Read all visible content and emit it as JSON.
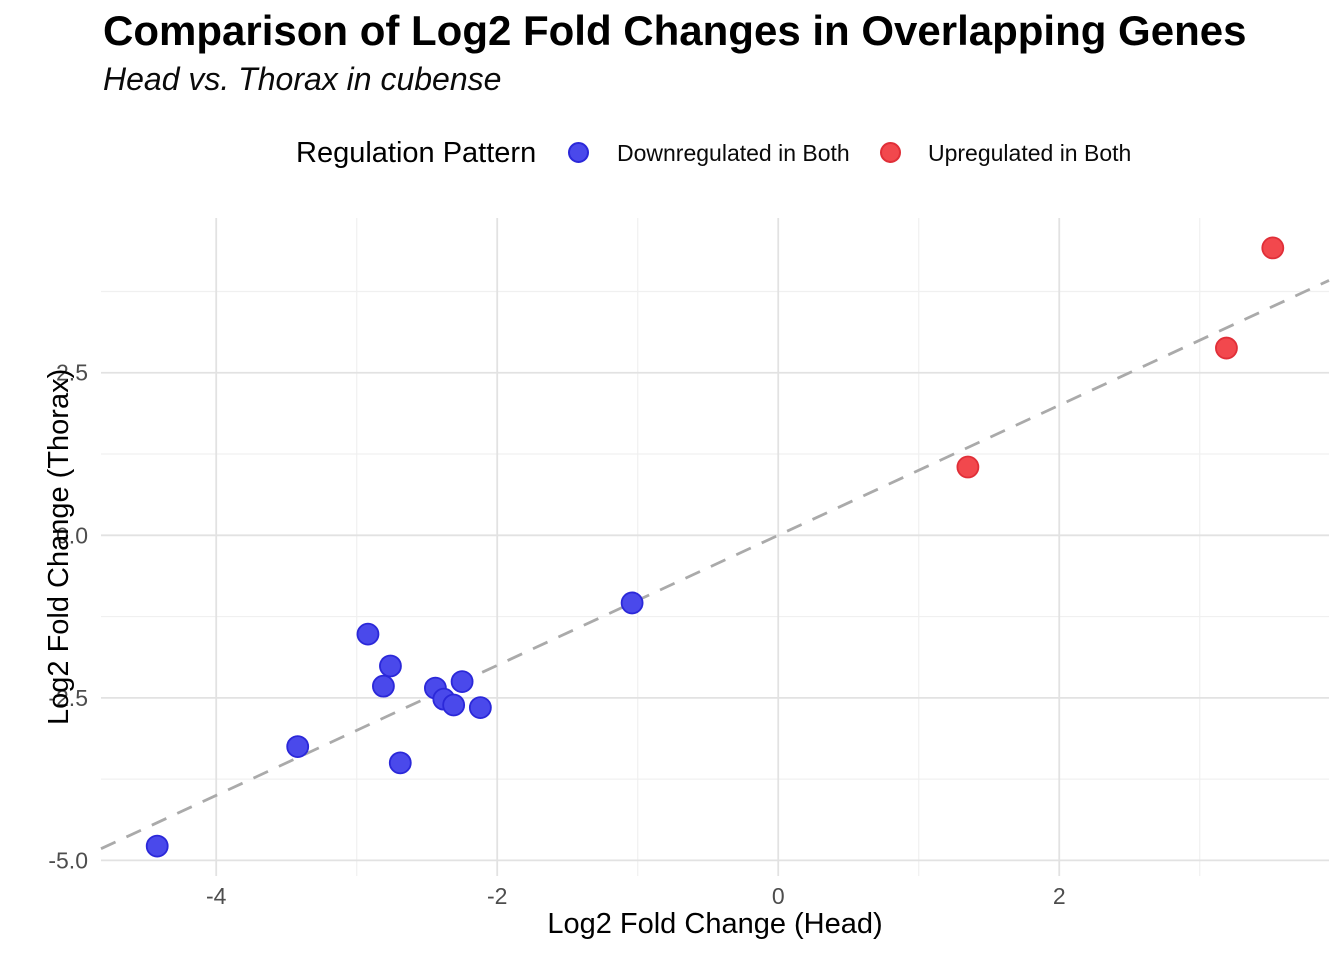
{
  "header": {
    "title": "Comparison of Log2 Fold Changes in Overlapping Genes",
    "subtitle": "Head vs. Thorax in cubense"
  },
  "legend": {
    "title": "Regulation Pattern",
    "position": "top",
    "items": [
      {
        "label": "Downregulated in Both",
        "color": "#4a49eb",
        "border": "#2b28d9"
      },
      {
        "label": "Upregulated in Both",
        "color": "#f2484d",
        "border": "#e02f38"
      }
    ]
  },
  "chart_data": {
    "type": "scatter",
    "title": "Comparison of Log2 Fold Changes in Overlapping Genes",
    "subtitle": "Head vs. Thorax in cubense",
    "xlabel": "Log2 Fold Change (Head)",
    "ylabel": "Log2 Fold Change (Thorax)",
    "xlim": [
      -4.82,
      3.92
    ],
    "ylim": [
      -5.24,
      4.88
    ],
    "x_ticks": [
      {
        "v": -4,
        "label": "-4"
      },
      {
        "v": -2,
        "label": "-2"
      },
      {
        "v": 0,
        "label": "0"
      },
      {
        "v": 2,
        "label": "2"
      }
    ],
    "x_minor": [
      -3,
      -1,
      1,
      3
    ],
    "y_ticks": [
      {
        "v": 2.5,
        "label": "2.5"
      },
      {
        "v": 0,
        "label": "0.0"
      },
      {
        "v": -2.5,
        "label": "-2.5"
      },
      {
        "v": -5,
        "label": "-5.0"
      }
    ],
    "y_minor": [
      3.75,
      1.25,
      -1.25,
      -3.75
    ],
    "grid": true,
    "reference_line": {
      "slope": 1,
      "intercept": 0,
      "style": "dashed",
      "color": "#aaaaaa"
    },
    "series": [
      {
        "name": "Downregulated in Both",
        "color": "#4a49eb",
        "border": "#2b28d9",
        "points": [
          [
            -4.42,
            -4.78
          ],
          [
            -3.42,
            -3.25
          ],
          [
            -2.92,
            -1.52
          ],
          [
            -2.81,
            -2.32
          ],
          [
            -2.76,
            -2.01
          ],
          [
            -2.69,
            -3.5
          ],
          [
            -2.44,
            -2.35
          ],
          [
            -2.38,
            -2.52
          ],
          [
            -2.31,
            -2.61
          ],
          [
            -2.25,
            -2.25
          ],
          [
            -2.12,
            -2.65
          ],
          [
            -1.04,
            -1.04
          ]
        ]
      },
      {
        "name": "Upregulated in Both",
        "color": "#f2484d",
        "border": "#e02f38",
        "points": [
          [
            1.35,
            1.05
          ],
          [
            3.19,
            2.88
          ],
          [
            3.52,
            4.42
          ]
        ]
      }
    ]
  }
}
